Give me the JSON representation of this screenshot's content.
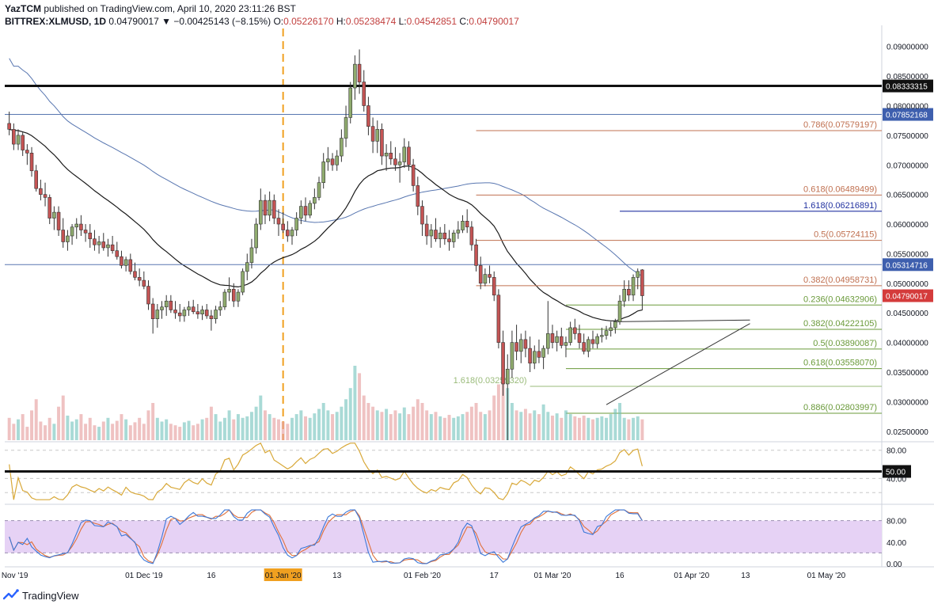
{
  "header": {
    "author": "YazTCM",
    "published_text": "published on TradingView.com, April 10, 2020 23:11:26 BST",
    "symbol": "BITTREX:XLMUSD, 1D",
    "last": "0.04790017",
    "change": "▼ −0.00425143 (−8.15%)",
    "o_label": "O:",
    "o": "0.05226170",
    "h_label": "H:",
    "h": "0.05238474",
    "l_label": "L:",
    "l": "0.04542851",
    "c_label": "C:",
    "c": "0.04790017"
  },
  "footer": {
    "brand": "TradingView"
  },
  "colors": {
    "up": "#8fab6e",
    "down": "#c45454",
    "ema": "#1a1a1a",
    "sma": "#5876b0",
    "fib_red": "#c07050",
    "fib_green": "#6a9a3a",
    "fib_blue": "#2232a0",
    "rsi": "#d8a838",
    "stoch_k": "#3c78d8",
    "stoch_d": "#e0703a",
    "stoch_band": "#e6d2f5",
    "vline": "#f0a020"
  },
  "chart_data": {
    "type": "candlestick",
    "title": "BITTREX:XLMUSD, 1D",
    "xlabel": "",
    "ylabel": "",
    "ylim": [
      0.0235,
      0.0925
    ],
    "y_ticks": [
      "0.09000000",
      "0.08500000",
      "0.08000000",
      "0.07500000",
      "0.07000000",
      "0.06500000",
      "0.06000000",
      "0.05500000",
      "0.05000000",
      "0.04500000",
      "0.04000000",
      "0.03500000",
      "0.03000000",
      "0.02500000"
    ],
    "x_ticks": [
      {
        "label": "01 Nov '19",
        "day": 0
      },
      {
        "label": "01 Dec '19",
        "day": 30
      },
      {
        "label": "16",
        "day": 45
      },
      {
        "label": "01 Jan '20",
        "day": 61,
        "highlight": true
      },
      {
        "label": "13",
        "day": 73
      },
      {
        "label": "01 Feb '20",
        "day": 92
      },
      {
        "label": "17",
        "day": 108
      },
      {
        "label": "01 Mar '20",
        "day": 121
      },
      {
        "label": "16",
        "day": 136
      },
      {
        "label": "01 Apr '20",
        "day": 152
      },
      {
        "label": "13",
        "day": 164
      },
      {
        "label": "01 May '20",
        "day": 182
      }
    ],
    "x_range": [
      -1,
      194
    ],
    "vertical_marker_day": 61,
    "horizontal_levels": [
      {
        "value": 0.08333315,
        "label": "0.08333315",
        "style": "black-thick"
      },
      {
        "value": 0.07852168,
        "label": "0.07852168",
        "style": "blue"
      },
      {
        "value": 0.05314716,
        "label": "0.05314716",
        "style": "blue"
      }
    ],
    "price_tag": {
      "value": 0.04790017,
      "label": "0.04790017"
    },
    "fib_levels": [
      {
        "ratio": "0.786",
        "value": 0.07579197,
        "text": "0.786(0.07579197)",
        "color": "red",
        "from_day": 104
      },
      {
        "ratio": "0.618",
        "value": 0.06489499,
        "text": "0.618(0.06489499)",
        "color": "red",
        "from_day": 104
      },
      {
        "ratio": "1.618",
        "value": 0.06216891,
        "text": "1.618(0.06216891)",
        "color": "blue",
        "from_day": 136
      },
      {
        "ratio": "0.5",
        "value": 0.05724115,
        "text": "0.5(0.05724115)",
        "color": "red",
        "from_day": 104
      },
      {
        "ratio": "0.382",
        "value": 0.04958731,
        "text": "0.382(0.04958731)",
        "color": "red",
        "from_day": 104
      },
      {
        "ratio": "0.236",
        "value": 0.04632906,
        "text": "0.236(0.04632906)",
        "color": "green",
        "from_day": 124
      },
      {
        "ratio": "0.382",
        "value": 0.04222105,
        "text": "0.382(0.04222105)",
        "color": "green",
        "from_day": 124
      },
      {
        "ratio": "0.5",
        "value": 0.03890087,
        "text": "0.5(0.03890087)",
        "color": "green",
        "from_day": 124
      },
      {
        "ratio": "0.618",
        "value": 0.0355807,
        "text": "0.618(0.03558070)",
        "color": "green",
        "from_day": 124
      },
      {
        "ratio": "1.618",
        "value": 0.0325932,
        "text": "1.618(0.03259320)",
        "color": "green-faint",
        "from_day": 116,
        "label_left": true
      },
      {
        "ratio": "0.886",
        "value": 0.02803997,
        "text": "0.886(0.02803997)",
        "color": "green",
        "from_day": 124
      }
    ],
    "trendlines": [
      {
        "from": [
          133,
          0.0295
        ],
        "to": [
          165,
          0.0432
        ]
      },
      {
        "from": [
          135,
          0.0435
        ],
        "to": [
          165,
          0.0438
        ]
      }
    ],
    "candles": [
      [
        0.077,
        0.079,
        0.075,
        0.076
      ],
      [
        0.076,
        0.077,
        0.0725,
        0.0735
      ],
      [
        0.0735,
        0.076,
        0.0725,
        0.075
      ],
      [
        0.075,
        0.0755,
        0.0715,
        0.0725
      ],
      [
        0.0725,
        0.0735,
        0.07,
        0.072
      ],
      [
        0.072,
        0.073,
        0.068,
        0.069
      ],
      [
        0.069,
        0.07,
        0.0655,
        0.066
      ],
      [
        0.066,
        0.0675,
        0.064,
        0.065
      ],
      [
        0.065,
        0.067,
        0.063,
        0.0645
      ],
      [
        0.0645,
        0.065,
        0.06,
        0.061
      ],
      [
        0.061,
        0.063,
        0.059,
        0.062
      ],
      [
        0.062,
        0.063,
        0.058,
        0.059
      ],
      [
        0.059,
        0.061,
        0.056,
        0.057
      ],
      [
        0.057,
        0.059,
        0.0555,
        0.058
      ],
      [
        0.058,
        0.06,
        0.0565,
        0.0595
      ],
      [
        0.0595,
        0.061,
        0.0575,
        0.06
      ],
      [
        0.06,
        0.0615,
        0.058,
        0.059
      ],
      [
        0.059,
        0.06,
        0.057,
        0.0585
      ],
      [
        0.0585,
        0.06,
        0.056,
        0.0575
      ],
      [
        0.0575,
        0.059,
        0.0555,
        0.0565
      ],
      [
        0.0565,
        0.058,
        0.055,
        0.057
      ],
      [
        0.057,
        0.0585,
        0.0555,
        0.056
      ],
      [
        0.056,
        0.0575,
        0.0545,
        0.0565
      ],
      [
        0.0565,
        0.058,
        0.055,
        0.0555
      ],
      [
        0.0555,
        0.057,
        0.054,
        0.0545
      ],
      [
        0.0545,
        0.0555,
        0.0525,
        0.053
      ],
      [
        0.053,
        0.0545,
        0.052,
        0.054
      ],
      [
        0.054,
        0.055,
        0.0515,
        0.052
      ],
      [
        0.052,
        0.0535,
        0.0505,
        0.051
      ],
      [
        0.051,
        0.0525,
        0.0495,
        0.0505
      ],
      [
        0.0505,
        0.052,
        0.049,
        0.0495
      ],
      [
        0.0495,
        0.0505,
        0.0455,
        0.0465
      ],
      [
        0.0465,
        0.0475,
        0.0415,
        0.044
      ],
      [
        0.044,
        0.0465,
        0.0425,
        0.0455
      ],
      [
        0.0455,
        0.047,
        0.044,
        0.046
      ],
      [
        0.046,
        0.048,
        0.0445,
        0.047
      ],
      [
        0.047,
        0.048,
        0.045,
        0.0455
      ],
      [
        0.0455,
        0.047,
        0.044,
        0.045
      ],
      [
        0.045,
        0.0465,
        0.0435,
        0.0445
      ],
      [
        0.0445,
        0.046,
        0.0435,
        0.0455
      ],
      [
        0.0455,
        0.047,
        0.0445,
        0.046
      ],
      [
        0.046,
        0.0472,
        0.0448,
        0.0452
      ],
      [
        0.0452,
        0.0465,
        0.044,
        0.0448
      ],
      [
        0.0448,
        0.0462,
        0.0438,
        0.0455
      ],
      [
        0.0455,
        0.0465,
        0.044,
        0.0445
      ],
      [
        0.0445,
        0.0455,
        0.042,
        0.044
      ],
      [
        0.044,
        0.0462,
        0.0432,
        0.0455
      ],
      [
        0.0455,
        0.047,
        0.0445,
        0.046
      ],
      [
        0.046,
        0.049,
        0.0455,
        0.0485
      ],
      [
        0.0485,
        0.051,
        0.047,
        0.049
      ],
      [
        0.049,
        0.05,
        0.046,
        0.047
      ],
      [
        0.047,
        0.049,
        0.046,
        0.0485
      ],
      [
        0.0485,
        0.0525,
        0.048,
        0.052
      ],
      [
        0.052,
        0.055,
        0.0505,
        0.0535
      ],
      [
        0.0535,
        0.0575,
        0.0525,
        0.056
      ],
      [
        0.056,
        0.061,
        0.055,
        0.06
      ],
      [
        0.06,
        0.066,
        0.059,
        0.064
      ],
      [
        0.064,
        0.065,
        0.06,
        0.0615
      ],
      [
        0.0615,
        0.0655,
        0.0605,
        0.064
      ],
      [
        0.064,
        0.065,
        0.06,
        0.061
      ],
      [
        0.061,
        0.0625,
        0.058,
        0.06
      ],
      [
        0.06,
        0.062,
        0.0585,
        0.059
      ],
      [
        0.059,
        0.0605,
        0.057,
        0.058
      ],
      [
        0.058,
        0.0595,
        0.0565,
        0.059
      ],
      [
        0.059,
        0.062,
        0.058,
        0.061
      ],
      [
        0.061,
        0.064,
        0.06,
        0.063
      ],
      [
        0.063,
        0.0645,
        0.0605,
        0.0615
      ],
      [
        0.0615,
        0.064,
        0.061,
        0.0635
      ],
      [
        0.0635,
        0.066,
        0.0625,
        0.0645
      ],
      [
        0.0645,
        0.068,
        0.064,
        0.067
      ],
      [
        0.067,
        0.072,
        0.066,
        0.0705
      ],
      [
        0.0705,
        0.073,
        0.069,
        0.071
      ],
      [
        0.071,
        0.072,
        0.069,
        0.07
      ],
      [
        0.07,
        0.0725,
        0.069,
        0.0715
      ],
      [
        0.0715,
        0.076,
        0.0705,
        0.0745
      ],
      [
        0.0745,
        0.08,
        0.073,
        0.078
      ],
      [
        0.078,
        0.084,
        0.077,
        0.083
      ],
      [
        0.083,
        0.0885,
        0.081,
        0.087
      ],
      [
        0.087,
        0.0895,
        0.082,
        0.084
      ],
      [
        0.084,
        0.086,
        0.079,
        0.08
      ],
      [
        0.08,
        0.0815,
        0.075,
        0.0765
      ],
      [
        0.0765,
        0.078,
        0.072,
        0.074
      ],
      [
        0.074,
        0.0775,
        0.072,
        0.076
      ],
      [
        0.076,
        0.077,
        0.07,
        0.0715
      ],
      [
        0.0715,
        0.0735,
        0.069,
        0.072
      ],
      [
        0.072,
        0.074,
        0.07,
        0.071
      ],
      [
        0.071,
        0.073,
        0.069,
        0.07
      ],
      [
        0.07,
        0.072,
        0.067,
        0.0705
      ],
      [
        0.0705,
        0.0745,
        0.0695,
        0.073
      ],
      [
        0.073,
        0.074,
        0.069,
        0.07
      ],
      [
        0.07,
        0.071,
        0.0655,
        0.0665
      ],
      [
        0.0665,
        0.068,
        0.0615,
        0.063
      ],
      [
        0.063,
        0.064,
        0.058,
        0.06
      ],
      [
        0.06,
        0.0615,
        0.0565,
        0.058
      ],
      [
        0.058,
        0.06,
        0.056,
        0.059
      ],
      [
        0.059,
        0.061,
        0.057,
        0.0575
      ],
      [
        0.0575,
        0.0595,
        0.056,
        0.0585
      ],
      [
        0.0585,
        0.06,
        0.0565,
        0.0575
      ],
      [
        0.0575,
        0.059,
        0.0555,
        0.057
      ],
      [
        0.057,
        0.059,
        0.056,
        0.0585
      ],
      [
        0.0585,
        0.0605,
        0.0575,
        0.059
      ],
      [
        0.059,
        0.0615,
        0.0585,
        0.0605
      ],
      [
        0.0605,
        0.0625,
        0.0585,
        0.0595
      ],
      [
        0.0595,
        0.0605,
        0.0555,
        0.0565
      ],
      [
        0.0565,
        0.0575,
        0.052,
        0.053
      ],
      [
        0.053,
        0.0545,
        0.049,
        0.05
      ],
      [
        0.05,
        0.0525,
        0.0495,
        0.0515
      ],
      [
        0.0515,
        0.053,
        0.05,
        0.051
      ],
      [
        0.051,
        0.052,
        0.047,
        0.048
      ],
      [
        0.048,
        0.049,
        0.039,
        0.04
      ],
      [
        0.04,
        0.042,
        0.031,
        0.033
      ],
      [
        0.033,
        0.038,
        0.0235,
        0.0355
      ],
      [
        0.0355,
        0.042,
        0.034,
        0.04
      ],
      [
        0.04,
        0.043,
        0.037,
        0.0385
      ],
      [
        0.0385,
        0.0415,
        0.0365,
        0.0405
      ],
      [
        0.0405,
        0.042,
        0.0375,
        0.039
      ],
      [
        0.039,
        0.041,
        0.035,
        0.0365
      ],
      [
        0.0365,
        0.0395,
        0.0355,
        0.0385
      ],
      [
        0.0385,
        0.0405,
        0.0365,
        0.0375
      ],
      [
        0.0375,
        0.0395,
        0.0355,
        0.039
      ],
      [
        0.039,
        0.047,
        0.038,
        0.0415
      ],
      [
        0.0415,
        0.043,
        0.039,
        0.04
      ],
      [
        0.04,
        0.042,
        0.0385,
        0.041
      ],
      [
        0.041,
        0.0425,
        0.039,
        0.0395
      ],
      [
        0.0395,
        0.041,
        0.0375,
        0.04
      ],
      [
        0.04,
        0.0435,
        0.0395,
        0.0425
      ],
      [
        0.0425,
        0.044,
        0.0405,
        0.0415
      ],
      [
        0.0415,
        0.043,
        0.039,
        0.04
      ],
      [
        0.04,
        0.0415,
        0.038,
        0.0385
      ],
      [
        0.0385,
        0.041,
        0.0375,
        0.0405
      ],
      [
        0.0405,
        0.042,
        0.039,
        0.0398
      ],
      [
        0.0398,
        0.0415,
        0.039,
        0.041
      ],
      [
        0.041,
        0.0425,
        0.04,
        0.0412
      ],
      [
        0.0412,
        0.0428,
        0.0405,
        0.042
      ],
      [
        0.042,
        0.0435,
        0.041,
        0.0425
      ],
      [
        0.0425,
        0.044,
        0.0415,
        0.0435
      ],
      [
        0.0435,
        0.048,
        0.043,
        0.047
      ],
      [
        0.047,
        0.0505,
        0.046,
        0.049
      ],
      [
        0.049,
        0.0505,
        0.047,
        0.048
      ],
      [
        0.048,
        0.0515,
        0.047,
        0.051
      ],
      [
        0.051,
        0.0525,
        0.049,
        0.052
      ],
      [
        0.0522617,
        0.05238474,
        0.04542851,
        0.04790017
      ]
    ],
    "volume": [
      0.3,
      0.22,
      0.28,
      0.35,
      0.18,
      0.4,
      0.55,
      0.25,
      0.2,
      0.3,
      0.22,
      0.45,
      0.6,
      0.33,
      0.25,
      0.28,
      0.35,
      0.22,
      0.3,
      0.2,
      0.18,
      0.25,
      0.3,
      0.22,
      0.26,
      0.35,
      0.28,
      0.2,
      0.24,
      0.3,
      0.22,
      0.4,
      0.5,
      0.3,
      0.25,
      0.28,
      0.22,
      0.2,
      0.18,
      0.24,
      0.26,
      0.2,
      0.22,
      0.28,
      0.3,
      0.45,
      0.35,
      0.25,
      0.3,
      0.4,
      0.28,
      0.35,
      0.3,
      0.32,
      0.38,
      0.45,
      0.6,
      0.4,
      0.35,
      0.3,
      0.28,
      0.25,
      0.22,
      0.3,
      0.35,
      0.4,
      0.32,
      0.3,
      0.36,
      0.42,
      0.5,
      0.4,
      0.35,
      0.38,
      0.45,
      0.55,
      0.7,
      1.0,
      0.9,
      0.6,
      0.5,
      0.45,
      0.4,
      0.38,
      0.42,
      0.35,
      0.4,
      0.36,
      0.44,
      0.35,
      0.45,
      0.55,
      0.5,
      0.4,
      0.35,
      0.38,
      0.32,
      0.3,
      0.34,
      0.3,
      0.32,
      0.35,
      0.38,
      0.45,
      0.5,
      0.38,
      0.35,
      0.4,
      0.6,
      0.75,
      0.95,
      0.7,
      0.5,
      0.4,
      0.38,
      0.42,
      0.36,
      0.4,
      0.35,
      0.48,
      0.38,
      0.33,
      0.36,
      0.3,
      0.4,
      0.35,
      0.32,
      0.3,
      0.33,
      0.3,
      0.28,
      0.3,
      0.32,
      0.3,
      0.35,
      0.42,
      0.5,
      0.3,
      0.28,
      0.3,
      0.32,
      0.28
    ],
    "rsi": {
      "ticks": [
        "80.00",
        "50.00",
        "40.00"
      ],
      "ylim": [
        8,
        92
      ],
      "marker_value": 50,
      "marker_label": "50.00",
      "bands": [
        80,
        40,
        20
      ]
    },
    "stoch": {
      "ticks": [
        "80.00",
        "40.00",
        "0.00"
      ],
      "ylim": [
        -6,
        106
      ],
      "band": [
        20,
        80
      ]
    }
  }
}
